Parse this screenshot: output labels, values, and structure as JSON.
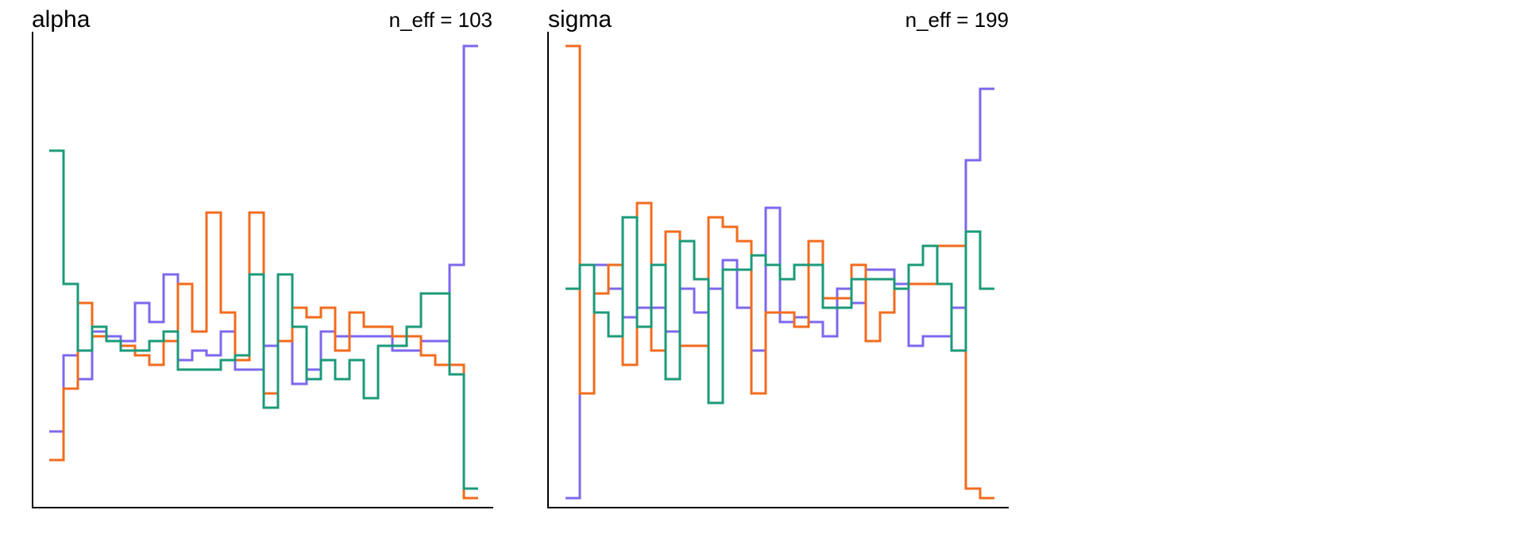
{
  "chart_data": [
    {
      "type": "line",
      "style": "step",
      "title": "alpha",
      "annotation": "n_eff = 103",
      "xlabel": "",
      "ylabel": "",
      "grid": false,
      "ylim": [
        0,
        1
      ],
      "series": [
        {
          "color": "#7b68ee",
          "values": [
            0.16,
            0.32,
            0.27,
            0.37,
            0.36,
            0.35,
            0.43,
            0.39,
            0.49,
            0.31,
            0.33,
            0.32,
            0.37,
            0.29,
            0.29,
            0.34,
            0.35,
            0.26,
            0.29,
            0.37,
            0.36,
            0.36,
            0.36,
            0.36,
            0.33,
            0.33,
            0.35,
            0.35,
            0.51,
            0.97
          ]
        },
        {
          "color": "#f26b1d",
          "values": [
            0.1,
            0.25,
            0.43,
            0.36,
            0.35,
            0.34,
            0.32,
            0.3,
            0.35,
            0.47,
            0.37,
            0.62,
            0.41,
            0.31,
            0.62,
            0.24,
            0.35,
            0.42,
            0.4,
            0.42,
            0.33,
            0.41,
            0.38,
            0.38,
            0.36,
            0.36,
            0.32,
            0.3,
            0.3,
            0.02
          ]
        },
        {
          "color": "#1b9a7a",
          "values": [
            0.75,
            0.47,
            0.33,
            0.38,
            0.35,
            0.33,
            0.33,
            0.35,
            0.37,
            0.29,
            0.29,
            0.29,
            0.31,
            0.32,
            0.49,
            0.21,
            0.49,
            0.38,
            0.27,
            0.31,
            0.27,
            0.31,
            0.23,
            0.34,
            0.34,
            0.38,
            0.45,
            0.45,
            0.28,
            0.04
          ]
        }
      ]
    },
    {
      "type": "line",
      "style": "step",
      "title": "sigma",
      "annotation": "n_eff = 199",
      "xlabel": "",
      "ylabel": "",
      "grid": false,
      "ylim": [
        0,
        1
      ],
      "series": [
        {
          "color": "#7b68ee",
          "values": [
            0.02,
            0.51,
            0.51,
            0.46,
            0.4,
            0.42,
            0.42,
            0.37,
            0.46,
            0.41,
            0.46,
            0.52,
            0.42,
            0.33,
            0.63,
            0.39,
            0.4,
            0.39,
            0.36,
            0.46,
            0.43,
            0.5,
            0.5,
            0.47,
            0.34,
            0.36,
            0.36,
            0.42,
            0.73,
            0.88
          ]
        },
        {
          "color": "#f26b1d",
          "values": [
            0.97,
            0.24,
            0.45,
            0.51,
            0.3,
            0.64,
            0.33,
            0.58,
            0.34,
            0.34,
            0.61,
            0.59,
            0.56,
            0.24,
            0.41,
            0.41,
            0.38,
            0.56,
            0.44,
            0.44,
            0.51,
            0.35,
            0.41,
            0.46,
            0.47,
            0.47,
            0.55,
            0.55,
            0.04,
            0.02
          ]
        },
        {
          "color": "#1b9a7a",
          "values": [
            0.46,
            0.51,
            0.41,
            0.36,
            0.61,
            0.38,
            0.51,
            0.27,
            0.56,
            0.48,
            0.22,
            0.5,
            0.5,
            0.53,
            0.51,
            0.48,
            0.51,
            0.51,
            0.42,
            0.42,
            0.48,
            0.48,
            0.48,
            0.46,
            0.51,
            0.55,
            0.47,
            0.33,
            0.58,
            0.46
          ]
        }
      ]
    }
  ]
}
